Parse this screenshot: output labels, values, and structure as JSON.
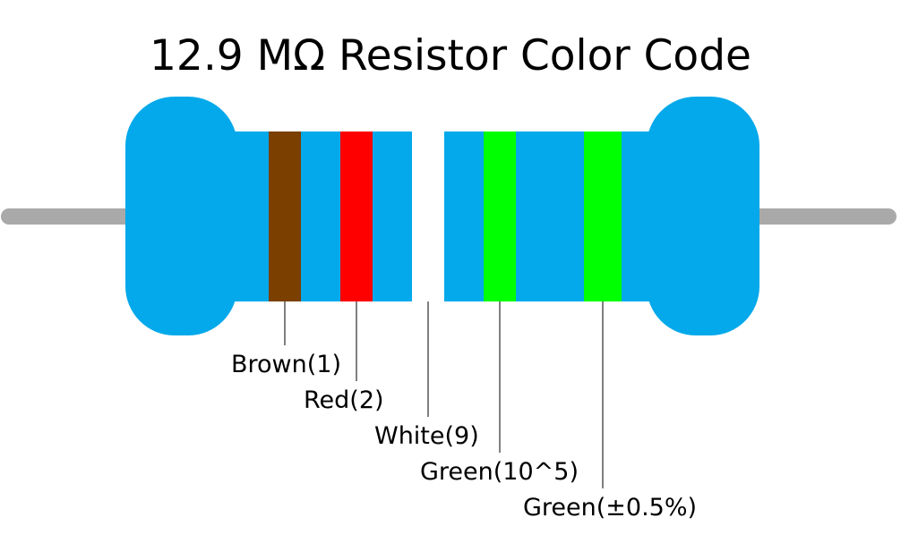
{
  "title": "12.9 MΩ Resistor Color Code",
  "bands": [
    {
      "label": "Brown(1)",
      "color": "#7b3f00"
    },
    {
      "label": "Red(2)",
      "color": "#ff0000"
    },
    {
      "label": "White(9)",
      "color": "#ffffff"
    },
    {
      "label": "Green(10^5)",
      "color": "#00ff00"
    },
    {
      "label": "Green(±0.5%)",
      "color": "#00ff00"
    }
  ]
}
